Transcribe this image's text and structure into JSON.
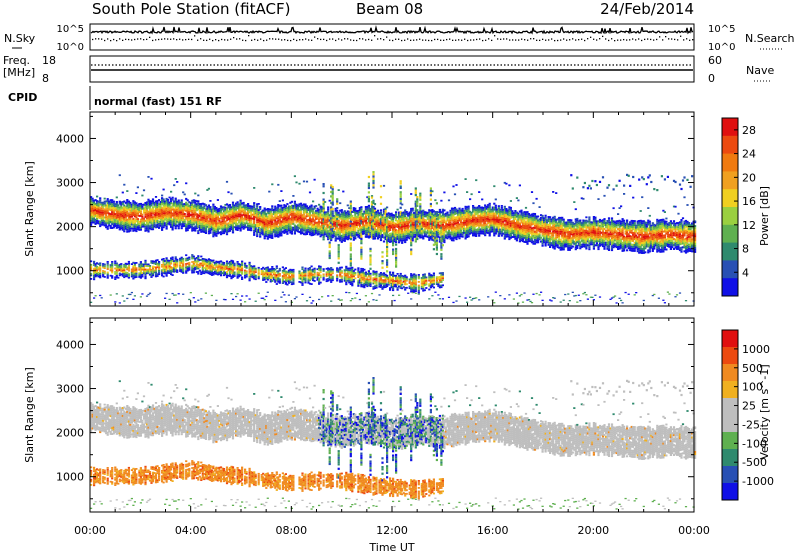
{
  "header": {
    "station": "South Pole Station (fitACF)",
    "beam": "Beam 08",
    "date": "24/Feb/2014"
  },
  "top_panels": {
    "nsky_label": "N.Sky",
    "nsearch_label": "N.Search",
    "nsky_ticks": [
      "10^5",
      "10^0"
    ],
    "nsearch_ticks": [
      "10^5",
      "10^0"
    ],
    "freq_label_1": "Freq.",
    "freq_label_2": "[MHz]",
    "freq_ticks": [
      "18",
      "8"
    ],
    "nave_label": "Nave",
    "nave_ticks": [
      "60",
      "0"
    ],
    "cpid_label": "CPID",
    "cpid_value": "normal (fast) 151 RF"
  },
  "colors": {
    "power": [
      "#1010e6",
      "#2850b4",
      "#2f8a6e",
      "#5fb050",
      "#9ad040",
      "#f0d020",
      "#f0a020",
      "#f07a10",
      "#ec4a10",
      "#e01010"
    ],
    "velocity": [
      "#1010e6",
      "#2850b4",
      "#2f8a6e",
      "#5fb050",
      "#bebebe",
      "#bebebe",
      "#f0b020",
      "#f08a20",
      "#ec4a10",
      "#e01010"
    ]
  },
  "chart_data": [
    {
      "type": "heatmap",
      "name": "power",
      "ylabel": "Slant Range [km]",
      "ylim": [
        200,
        4600
      ],
      "yticks": [
        "1000",
        "2000",
        "3000",
        "4000"
      ],
      "colorbar_label": "Power [dB]",
      "colorbar_ticks": [
        "4",
        "8",
        "12",
        "16",
        "20",
        "24",
        "28"
      ],
      "colorbar_range": [
        0,
        30
      ],
      "features": [
        {
          "band": "upper",
          "x": [
            0,
            1,
            2,
            3,
            4,
            5,
            6,
            7,
            8,
            9,
            10,
            11,
            12,
            13,
            14,
            15,
            16,
            17,
            18,
            19,
            20,
            21,
            22,
            23,
            24
          ],
          "y": [
            2350,
            2250,
            2200,
            2300,
            2250,
            2100,
            2250,
            2050,
            2200,
            2100,
            2000,
            2100,
            1950,
            2050,
            2000,
            2100,
            2150,
            2000,
            1900,
            1800,
            1850,
            1800,
            1750,
            1800,
            1750
          ]
        },
        {
          "band": "lower",
          "x": [
            0,
            2,
            4,
            5,
            6,
            7,
            8,
            9,
            10,
            11,
            12,
            13,
            14
          ],
          "y": [
            1000,
            1000,
            1150,
            1050,
            1000,
            900,
            850,
            900,
            900,
            800,
            750,
            700,
            800
          ]
        }
      ]
    },
    {
      "type": "heatmap",
      "name": "velocity",
      "ylabel": "Slant Range [km]",
      "ylim": [
        200,
        4600
      ],
      "yticks": [
        "1000",
        "2000",
        "3000",
        "4000"
      ],
      "xlabel": "Time UT",
      "xticks": [
        "00:00",
        "04:00",
        "08:00",
        "12:00",
        "16:00",
        "20:00",
        "00:00"
      ],
      "colorbar_label": "Velocity [m s^-1]",
      "colorbar_ticks": [
        "1000",
        "500",
        "100",
        "25",
        "-25",
        "-100",
        "-500",
        "-1000"
      ]
    }
  ]
}
